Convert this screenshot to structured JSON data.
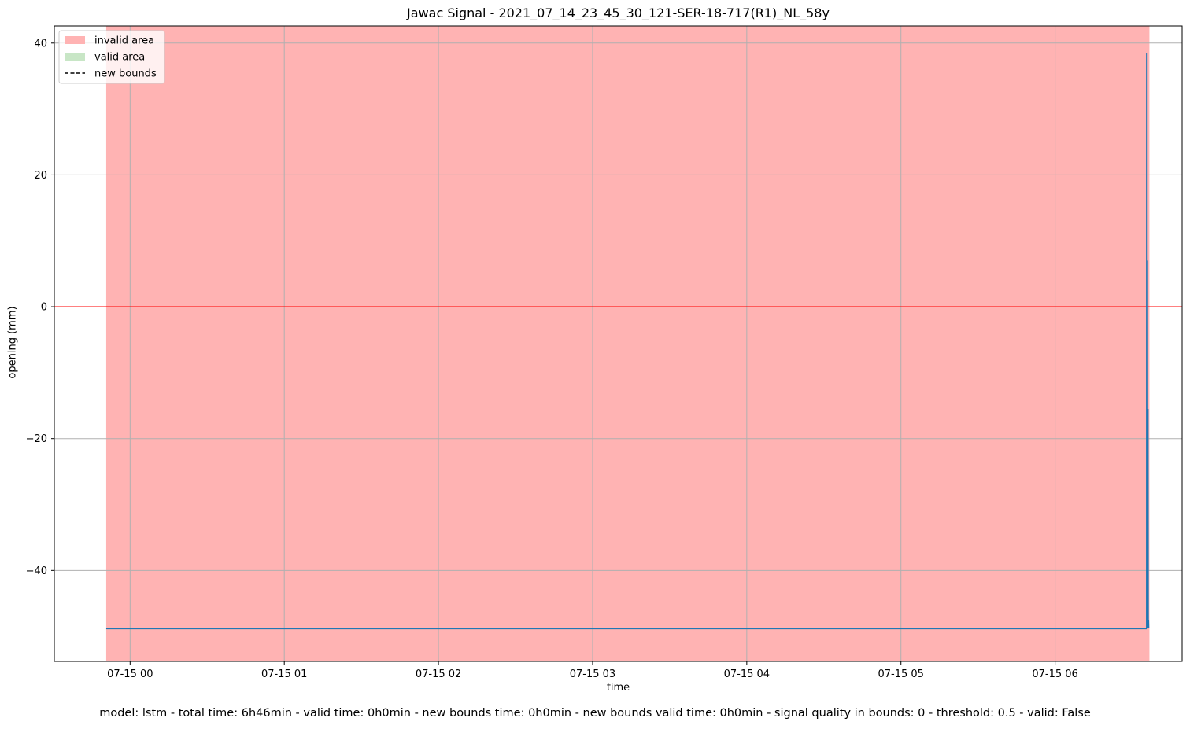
{
  "chart_data": {
    "type": "line",
    "title": "Jawac Signal - 2021_07_14_23_45_30_121-SER-18-717(R1)_NL_58y",
    "xlabel": "time",
    "ylabel": "opening (mm)",
    "x_ticks": [
      "07-15 00",
      "07-15 01",
      "07-15 02",
      "07-15 03",
      "07-15 04",
      "07-15 05",
      "07-15 06"
    ],
    "y_ticks": [
      -40,
      -20,
      0,
      20,
      40
    ],
    "xlim": [
      "2021-07-14 23:30:30",
      "2021-07-15 06:49:26"
    ],
    "ylim": [
      -53.8,
      42.6
    ],
    "grid": true,
    "legend": {
      "position": "top-left",
      "entries": [
        {
          "label": "invalid area",
          "color": "#ffb3b3",
          "kind": "patch"
        },
        {
          "label": "valid area",
          "color": "#c8e6c6",
          "kind": "patch"
        },
        {
          "label": "new bounds",
          "color": "#000000",
          "kind": "dashed-line"
        }
      ]
    },
    "areas": [
      {
        "name": "invalid area",
        "start": "2021-07-14 23:50:42",
        "end": "2021-07-15 06:36:42",
        "color": "#ffb3b3"
      }
    ],
    "hlines": [
      {
        "y": 0,
        "color": "#ff0000"
      }
    ],
    "series": [
      {
        "color": "#1f77b4",
        "points": [
          {
            "x": "2021-07-14 23:50:42",
            "y": -48.8
          },
          {
            "x": "2021-07-15 06:35:40",
            "y": -48.8
          },
          {
            "x": "2021-07-15 06:35:42",
            "y": 38.5
          },
          {
            "x": "2021-07-15 06:35:46",
            "y": -48.8
          },
          {
            "x": "2021-07-15 06:35:52",
            "y": 7.0
          },
          {
            "x": "2021-07-15 06:35:58",
            "y": -48.8
          },
          {
            "x": "2021-07-15 06:36:04",
            "y": -15.5
          },
          {
            "x": "2021-07-15 06:36:10",
            "y": -48.8
          },
          {
            "x": "2021-07-15 06:36:16",
            "y": -47.5
          },
          {
            "x": "2021-07-15 06:36:22",
            "y": -48.8
          }
        ]
      }
    ]
  },
  "footer": "model: lstm - total time: 6h46min - valid time: 0h0min - new bounds time: 0h0min - new bounds valid time: 0h0min - signal quality in bounds: 0 - threshold: 0.5 - valid: False"
}
